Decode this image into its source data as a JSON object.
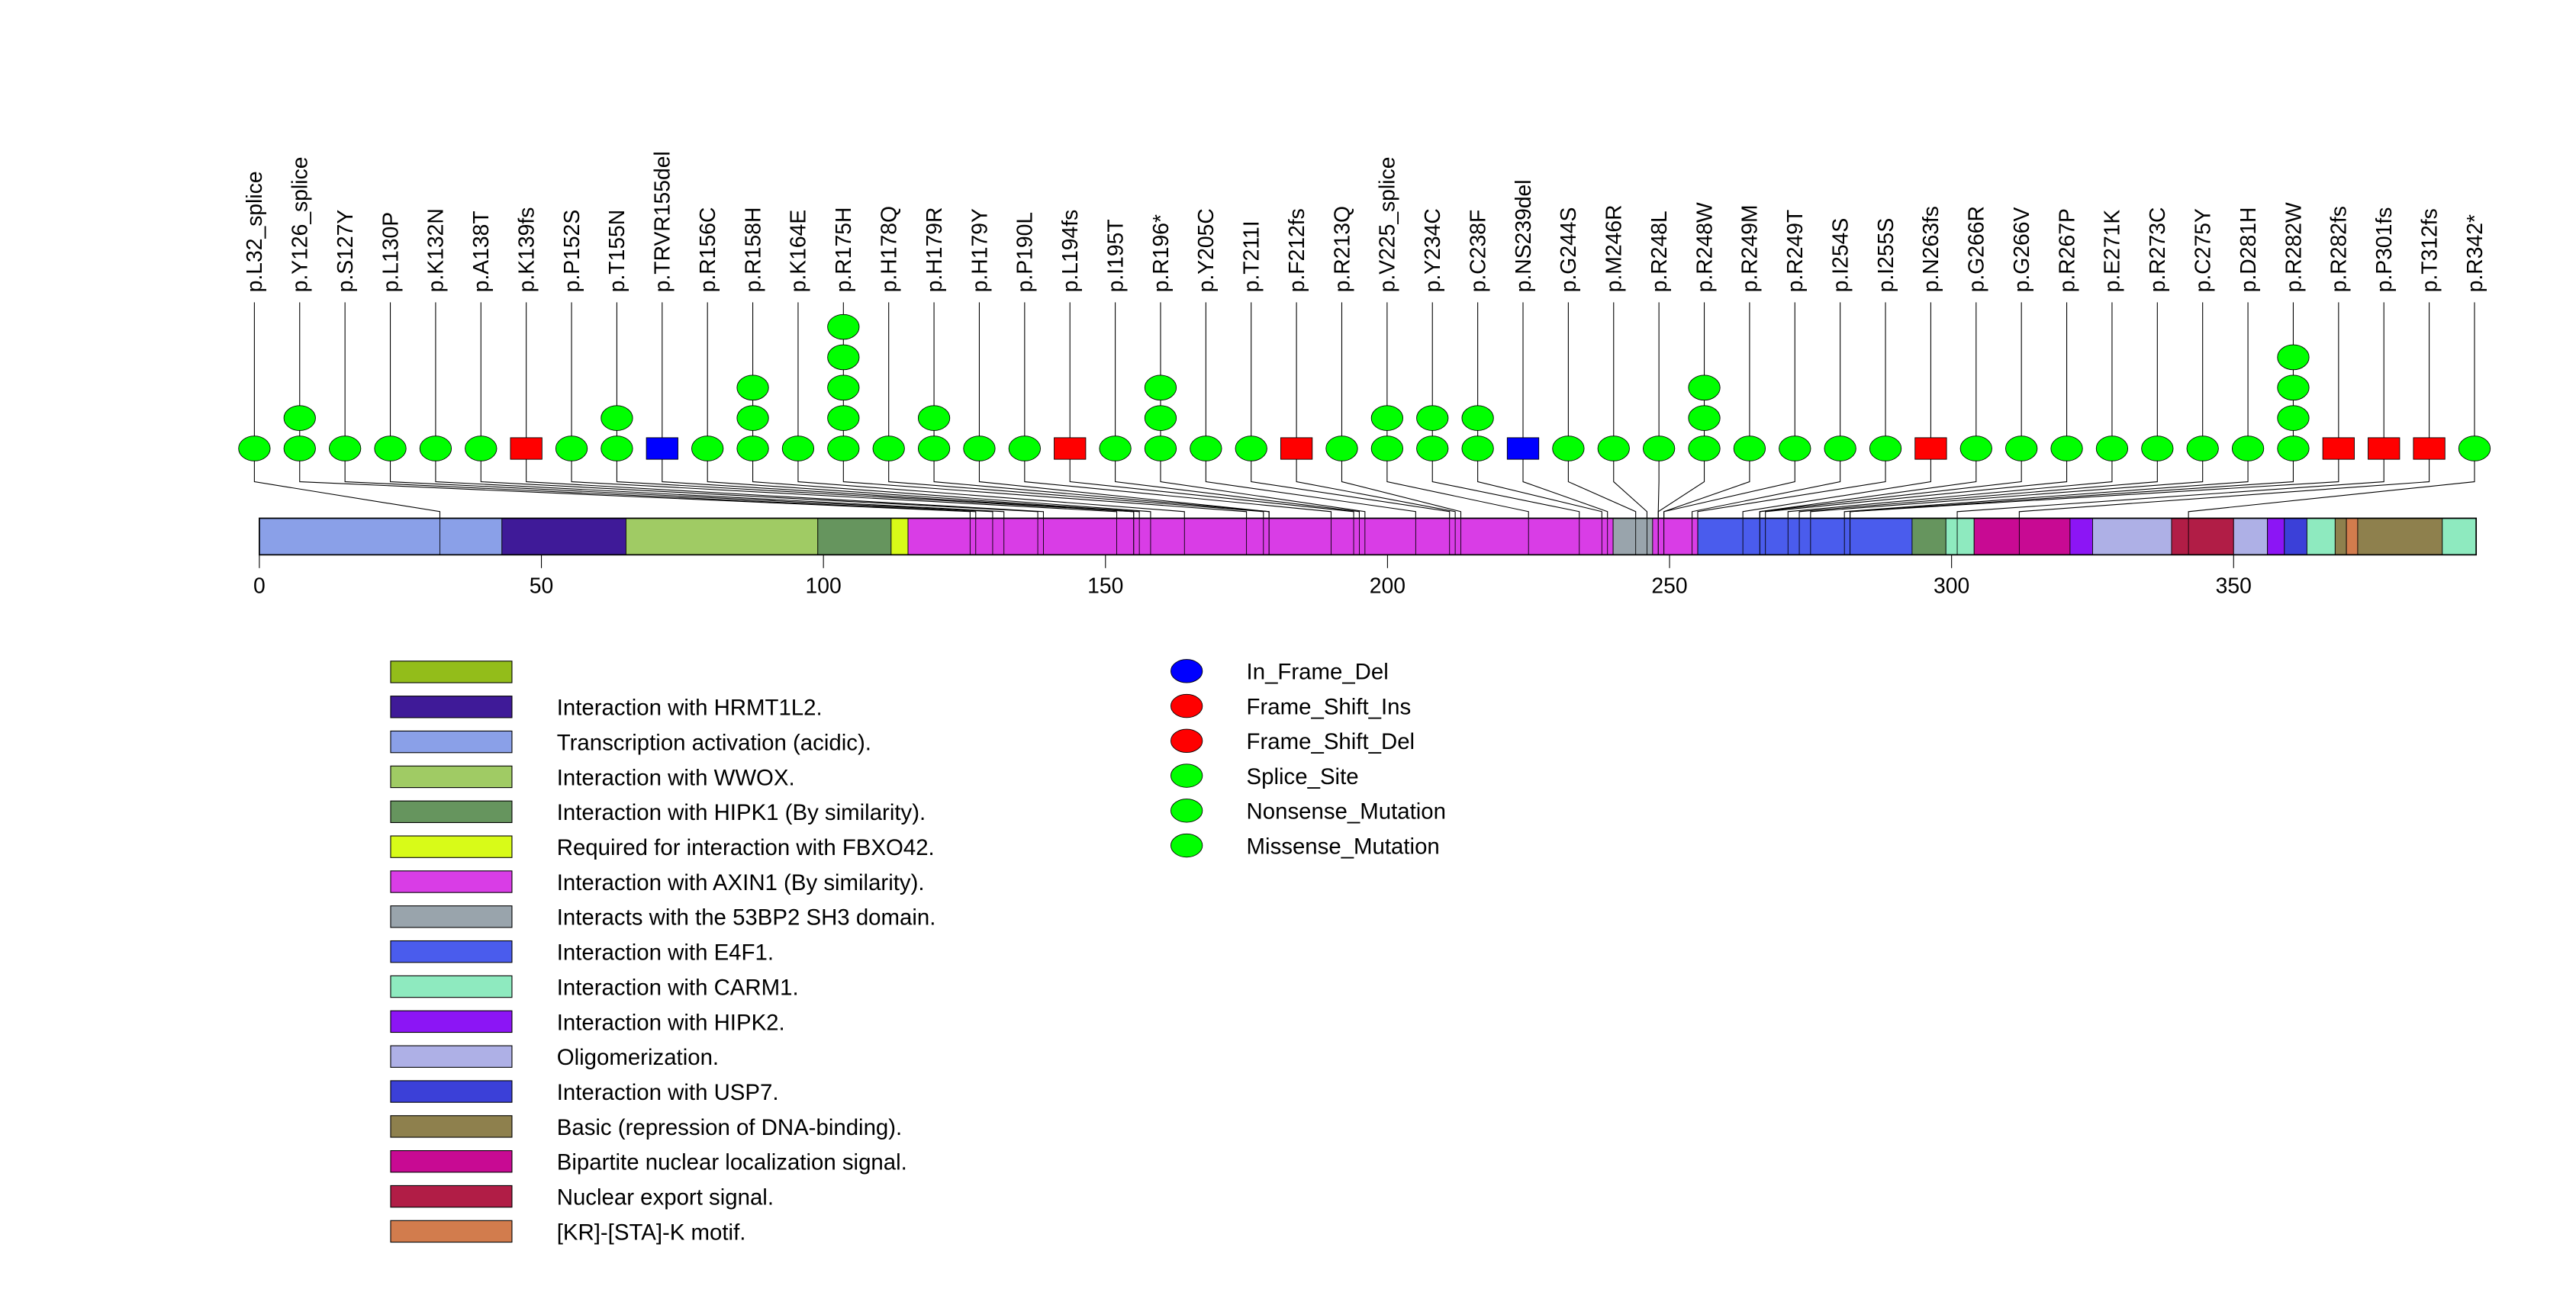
{
  "chart_data": {
    "type": "lollipop",
    "title": "",
    "xlabel": "",
    "ylabel": "",
    "protein_length": 393,
    "x_ticks": [
      0,
      50,
      100,
      150,
      200,
      250,
      300,
      350
    ],
    "mutation_types": [
      {
        "name": "In_Frame_Del",
        "color": "#0000ff",
        "shape": "square"
      },
      {
        "name": "Frame_Shift_Ins",
        "color": "#ff0000",
        "shape": "square"
      },
      {
        "name": "Frame_Shift_Del",
        "color": "#ff0000",
        "shape": "square"
      },
      {
        "name": "Splice_Site",
        "color": "#00ff00",
        "shape": "circle"
      },
      {
        "name": "Nonsense_Mutation",
        "color": "#00ff00",
        "shape": "circle"
      },
      {
        "name": "Missense_Mutation",
        "color": "#00ff00",
        "shape": "circle"
      }
    ],
    "mutations": [
      {
        "label": "p.L32_splice",
        "position": 32,
        "count": 1,
        "kind": "green"
      },
      {
        "label": "p.Y126_splice",
        "position": 126,
        "count": 2,
        "kind": "green"
      },
      {
        "label": "p.S127Y",
        "position": 127,
        "count": 1,
        "kind": "green"
      },
      {
        "label": "p.L130P",
        "position": 130,
        "count": 1,
        "kind": "green"
      },
      {
        "label": "p.K132N",
        "position": 132,
        "count": 1,
        "kind": "green"
      },
      {
        "label": "p.A138T",
        "position": 138,
        "count": 1,
        "kind": "green"
      },
      {
        "label": "p.K139fs",
        "position": 139,
        "count": 1,
        "kind": "red"
      },
      {
        "label": "p.P152S",
        "position": 152,
        "count": 1,
        "kind": "green"
      },
      {
        "label": "p.T155N",
        "position": 155,
        "count": 2,
        "kind": "green"
      },
      {
        "label": "p.TRVR155del",
        "position": 155,
        "count": 1,
        "kind": "blue"
      },
      {
        "label": "p.R156C",
        "position": 156,
        "count": 1,
        "kind": "green"
      },
      {
        "label": "p.R158H",
        "position": 158,
        "count": 3,
        "kind": "green"
      },
      {
        "label": "p.K164E",
        "position": 164,
        "count": 1,
        "kind": "green"
      },
      {
        "label": "p.R175H",
        "position": 175,
        "count": 5,
        "kind": "green"
      },
      {
        "label": "p.H178Q",
        "position": 178,
        "count": 1,
        "kind": "green"
      },
      {
        "label": "p.H179R",
        "position": 179,
        "count": 2,
        "kind": "green"
      },
      {
        "label": "p.H179Y",
        "position": 179,
        "count": 1,
        "kind": "green"
      },
      {
        "label": "p.P190L",
        "position": 190,
        "count": 1,
        "kind": "green"
      },
      {
        "label": "p.L194fs",
        "position": 194,
        "count": 1,
        "kind": "red"
      },
      {
        "label": "p.I195T",
        "position": 195,
        "count": 1,
        "kind": "green"
      },
      {
        "label": "p.R196*",
        "position": 196,
        "count": 3,
        "kind": "green"
      },
      {
        "label": "p.Y205C",
        "position": 205,
        "count": 1,
        "kind": "green"
      },
      {
        "label": "p.T211I",
        "position": 211,
        "count": 1,
        "kind": "green"
      },
      {
        "label": "p.F212fs",
        "position": 212,
        "count": 1,
        "kind": "red"
      },
      {
        "label": "p.R213Q",
        "position": 213,
        "count": 1,
        "kind": "green"
      },
      {
        "label": "p.V225_splice",
        "position": 225,
        "count": 2,
        "kind": "green"
      },
      {
        "label": "p.Y234C",
        "position": 234,
        "count": 2,
        "kind": "green"
      },
      {
        "label": "p.C238F",
        "position": 238,
        "count": 2,
        "kind": "green"
      },
      {
        "label": "p.NS239del",
        "position": 239,
        "count": 1,
        "kind": "blue"
      },
      {
        "label": "p.G244S",
        "position": 244,
        "count": 1,
        "kind": "green"
      },
      {
        "label": "p.M246R",
        "position": 246,
        "count": 1,
        "kind": "green"
      },
      {
        "label": "p.R248L",
        "position": 248,
        "count": 1,
        "kind": "green"
      },
      {
        "label": "p.R248W",
        "position": 248,
        "count": 3,
        "kind": "green"
      },
      {
        "label": "p.R249M",
        "position": 249,
        "count": 1,
        "kind": "green"
      },
      {
        "label": "p.R249T",
        "position": 249,
        "count": 1,
        "kind": "green"
      },
      {
        "label": "p.I254S",
        "position": 254,
        "count": 1,
        "kind": "green"
      },
      {
        "label": "p.I255S",
        "position": 255,
        "count": 1,
        "kind": "green"
      },
      {
        "label": "p.N263fs",
        "position": 263,
        "count": 1,
        "kind": "red"
      },
      {
        "label": "p.G266R",
        "position": 266,
        "count": 1,
        "kind": "green"
      },
      {
        "label": "p.G266V",
        "position": 266,
        "count": 1,
        "kind": "green"
      },
      {
        "label": "p.R267P",
        "position": 267,
        "count": 1,
        "kind": "green"
      },
      {
        "label": "p.E271K",
        "position": 271,
        "count": 1,
        "kind": "green"
      },
      {
        "label": "p.R273C",
        "position": 273,
        "count": 1,
        "kind": "green"
      },
      {
        "label": "p.C275Y",
        "position": 275,
        "count": 1,
        "kind": "green"
      },
      {
        "label": "p.D281H",
        "position": 281,
        "count": 1,
        "kind": "green"
      },
      {
        "label": "p.R282W",
        "position": 282,
        "count": 4,
        "kind": "green"
      },
      {
        "label": "p.R282fs",
        "position": 282,
        "count": 1,
        "kind": "red"
      },
      {
        "label": "p.P301fs",
        "position": 301,
        "count": 1,
        "kind": "red"
      },
      {
        "label": "p.T312fs",
        "position": 312,
        "count": 1,
        "kind": "red"
      },
      {
        "label": "p.R342*",
        "position": 342,
        "count": 1,
        "kind": "green"
      }
    ],
    "kind_colors": {
      "green": "#00ff00",
      "red": "#ff0000",
      "blue": "#0000ff"
    },
    "domains": [
      {
        "start": 0,
        "end": 43,
        "name": "Transcription activation (acidic).",
        "color": "#8aa0e8"
      },
      {
        "start": 43,
        "end": 65,
        "name": "Interaction with HRMT1L2.",
        "color": "#3f1a98"
      },
      {
        "start": 65,
        "end": 99,
        "name": "Interaction with WWOX.",
        "color": "#a0cb64"
      },
      {
        "start": 99,
        "end": 112,
        "name": "Interaction with HIPK1 (By similarity).",
        "color": "#66955e"
      },
      {
        "start": 112,
        "end": 115,
        "name": "Required for interaction with FBXO42.",
        "color": "#d8fb18"
      },
      {
        "start": 115,
        "end": 240,
        "name": "Interaction with AXIN1 (By similarity).",
        "color": "#d93de6"
      },
      {
        "start": 240,
        "end": 247,
        "name": "Interacts with the 53BP2 SH3 domain.",
        "color": "#99a4ac"
      },
      {
        "start": 247,
        "end": 255,
        "name": "Interaction with AXIN1 (By similarity).",
        "color": "#d93de6"
      },
      {
        "start": 255,
        "end": 293,
        "name": "Interaction with E4F1.",
        "color": "#4a5ced"
      },
      {
        "start": 293,
        "end": 299,
        "name": "Interaction with HIPK1 (By similarity).",
        "color": "#66955e"
      },
      {
        "start": 299,
        "end": 304,
        "name": "Interaction with CARM1.",
        "color": "#8eeabf"
      },
      {
        "start": 304,
        "end": 321,
        "name": "Bipartite nuclear localization signal.",
        "color": "#c80a93"
      },
      {
        "start": 321,
        "end": 325,
        "name": "Interaction with HIPK2.",
        "color": "#8c15f5"
      },
      {
        "start": 325,
        "end": 339,
        "name": "Oligomerization.",
        "color": "#aeb0e6"
      },
      {
        "start": 339,
        "end": 350,
        "name": "Nuclear export signal.",
        "color": "#b11d46"
      },
      {
        "start": 350,
        "end": 356,
        "name": "Oligomerization.",
        "color": "#aeb0e6"
      },
      {
        "start": 356,
        "end": 359,
        "name": "Interaction with HIPK2.",
        "color": "#8c15f5"
      },
      {
        "start": 359,
        "end": 363,
        "name": "Interaction with USP7.",
        "color": "#3b40d8"
      },
      {
        "start": 363,
        "end": 368,
        "name": "Interaction with CARM1.",
        "color": "#8eeabf"
      },
      {
        "start": 368,
        "end": 370,
        "name": "Basic (repression of DNA-binding).",
        "color": "#8e804d"
      },
      {
        "start": 370,
        "end": 372,
        "name": "[KR]-[STA]-K motif.",
        "color": "#d27c4d"
      },
      {
        "start": 372,
        "end": 387,
        "name": "Basic (repression of DNA-binding).",
        "color": "#8e804d"
      },
      {
        "start": 387,
        "end": 393,
        "name": "Interaction with CARM1.",
        "color": "#8eeabf"
      }
    ],
    "domain_legend": [
      {
        "label": "",
        "color": "#93bd1a"
      },
      {
        "label": "Interaction with HRMT1L2.",
        "color": "#3f1a98"
      },
      {
        "label": "Transcription activation (acidic).",
        "color": "#8aa0e8"
      },
      {
        "label": "Interaction with WWOX.",
        "color": "#a0cb64"
      },
      {
        "label": "Interaction with HIPK1 (By similarity).",
        "color": "#66955e"
      },
      {
        "label": "Required for interaction with FBXO42.",
        "color": "#d8fb18"
      },
      {
        "label": "Interaction with AXIN1 (By similarity).",
        "color": "#d93de6"
      },
      {
        "label": "Interacts with the 53BP2 SH3 domain.",
        "color": "#99a4ac"
      },
      {
        "label": "Interaction with E4F1.",
        "color": "#4a5ced"
      },
      {
        "label": "Interaction with CARM1.",
        "color": "#8eeabf"
      },
      {
        "label": "Interaction with HIPK2.",
        "color": "#8c15f5"
      },
      {
        "label": "Oligomerization.",
        "color": "#aeb0e6"
      },
      {
        "label": "Interaction with USP7.",
        "color": "#3b40d8"
      },
      {
        "label": "Basic (repression of DNA-binding).",
        "color": "#8e804d"
      },
      {
        "label": "Bipartite nuclear localization signal.",
        "color": "#c80a93"
      },
      {
        "label": "Nuclear export signal.",
        "color": "#b11d46"
      },
      {
        "label": "[KR]-[STA]-K motif.",
        "color": "#d27c4d"
      }
    ],
    "legend_position": "bottom"
  }
}
